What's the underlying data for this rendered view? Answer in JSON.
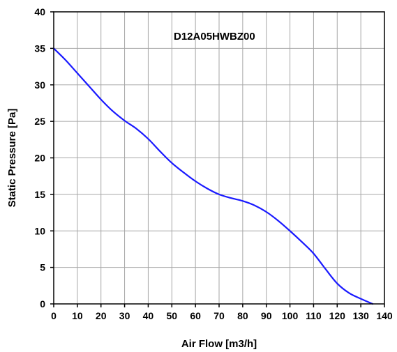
{
  "chart_data": {
    "type": "line",
    "title": "",
    "xlabel": "Air Flow [m3/h]",
    "ylabel": "Static Pressure [Pa]",
    "xlim": [
      0,
      140
    ],
    "ylim": [
      0,
      40
    ],
    "xticks": [
      0,
      10,
      20,
      30,
      40,
      50,
      60,
      70,
      80,
      90,
      100,
      110,
      120,
      130,
      140
    ],
    "yticks": [
      0,
      5,
      10,
      15,
      20,
      25,
      30,
      35,
      40
    ],
    "grid": true,
    "legend": "none",
    "annotation": "D12A05HWBZ00",
    "series": [
      {
        "color": "#1a1aff",
        "x": [
          0,
          5,
          10,
          15,
          20,
          25,
          30,
          35,
          40,
          45,
          50,
          55,
          60,
          65,
          70,
          75,
          80,
          85,
          90,
          95,
          100,
          105,
          110,
          115,
          120,
          125,
          130,
          135
        ],
        "y": [
          35,
          33.4,
          31.6,
          29.8,
          28,
          26.4,
          25.1,
          24,
          22.6,
          20.9,
          19.3,
          18,
          16.8,
          15.8,
          15,
          14.5,
          14.1,
          13.5,
          12.6,
          11.4,
          10,
          8.5,
          6.9,
          4.8,
          2.8,
          1.5,
          0.7,
          0
        ]
      }
    ]
  }
}
